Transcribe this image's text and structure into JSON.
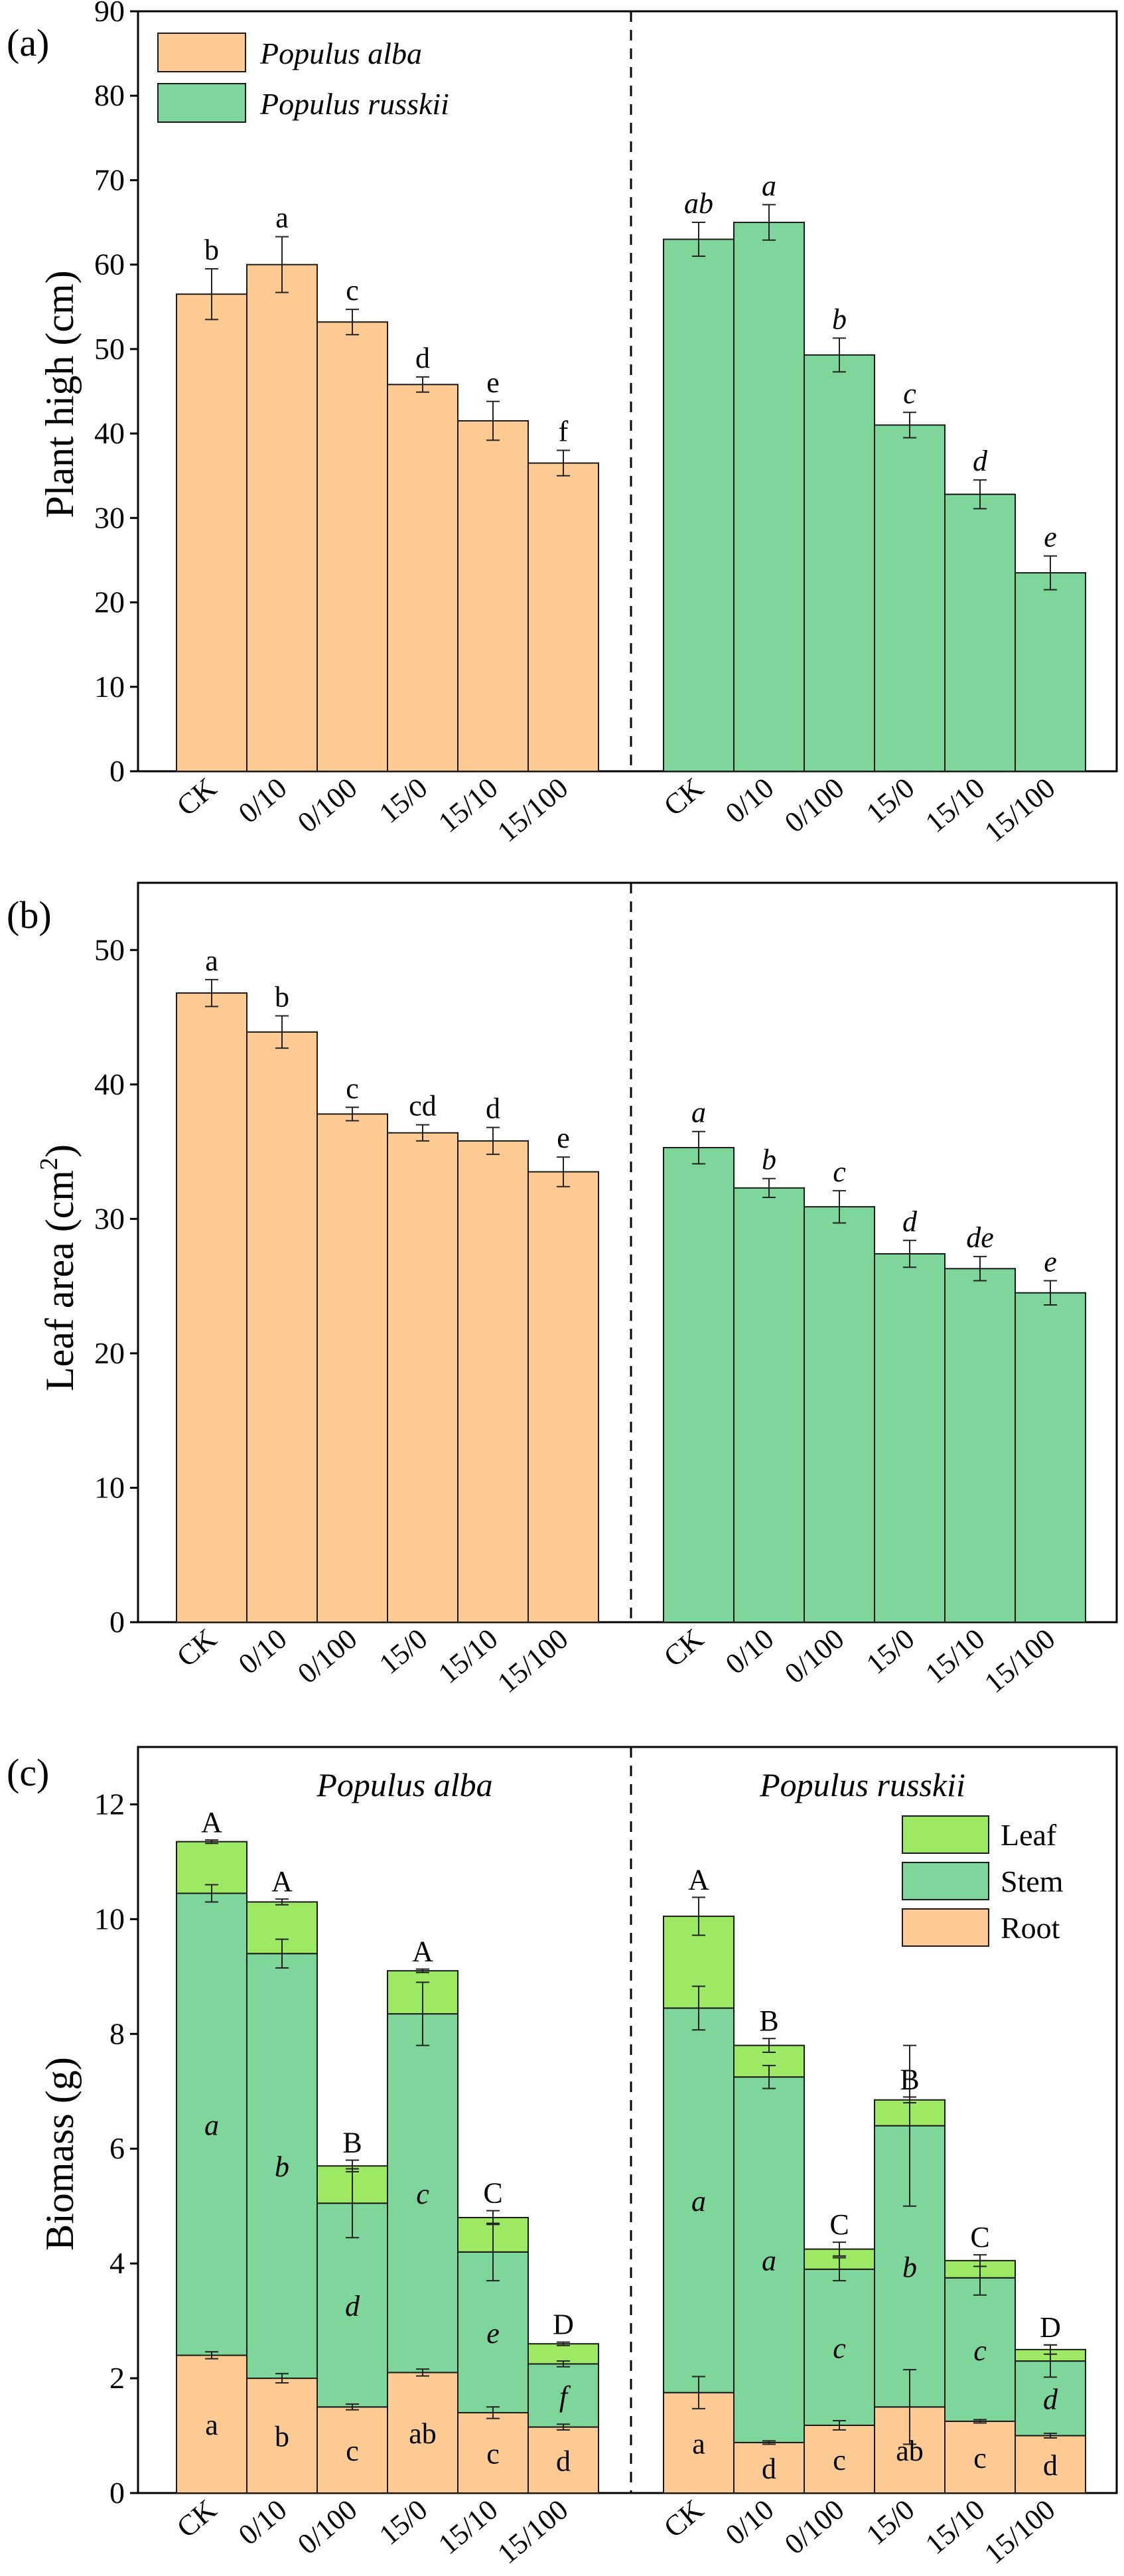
{
  "colors": {
    "alba": "#FDCA94",
    "russkii": "#7ED69A",
    "leaf": "#9EE963",
    "stem": "#7ED69A",
    "root": "#FDCA94",
    "edge": "#1a1a1a"
  },
  "legend": {
    "alba_label": "Populus alba",
    "russkii_label": "Populus russkii",
    "leaf_label": "Leaf",
    "stem_label": "Stem",
    "root_label": "Root"
  },
  "chart_data": [
    {
      "type": "bar",
      "panel_label": "(a)",
      "ylabel": "Plant high (cm)",
      "ylim": [
        0,
        90
      ],
      "yticks": [
        0,
        10,
        20,
        30,
        40,
        50,
        60,
        70,
        80,
        90
      ],
      "categories": [
        "CK",
        "0/10",
        "0/100",
        "15/0",
        "15/10",
        "15/100"
      ],
      "series": [
        {
          "name": "Populus alba",
          "values": [
            56.5,
            60.0,
            53.2,
            45.8,
            41.5,
            36.5
          ],
          "errors": [
            3.0,
            3.3,
            1.5,
            0.9,
            2.3,
            1.5
          ],
          "letters": [
            "b",
            "a",
            "c",
            "d",
            "e",
            "f"
          ],
          "italic": false
        },
        {
          "name": "Populus russkii",
          "values": [
            63.0,
            65.0,
            49.3,
            41.0,
            32.8,
            23.5
          ],
          "errors": [
            2.0,
            2.1,
            2.0,
            1.5,
            1.7,
            2.0
          ],
          "letters": [
            "ab",
            "a",
            "b",
            "c",
            "d",
            "e"
          ],
          "italic": true
        }
      ]
    },
    {
      "type": "bar",
      "panel_label": "(b)",
      "ylabel": "Leaf area (cm",
      "ylabel_sup": "2",
      "ylabel_end": ")",
      "ylim": [
        0,
        55
      ],
      "yticks": [
        0,
        10,
        20,
        30,
        40,
        50
      ],
      "categories": [
        "CK",
        "0/10",
        "0/100",
        "15/0",
        "15/10",
        "15/100"
      ],
      "series": [
        {
          "name": "Populus alba",
          "values": [
            46.8,
            43.9,
            37.8,
            36.4,
            35.8,
            33.5
          ],
          "errors": [
            1.0,
            1.2,
            0.5,
            0.6,
            1.0,
            1.1
          ],
          "letters": [
            "a",
            "b",
            "c",
            "cd",
            "d",
            "e"
          ],
          "italic": false
        },
        {
          "name": "Populus russkii",
          "values": [
            35.3,
            32.3,
            30.9,
            27.4,
            26.3,
            24.5
          ],
          "errors": [
            1.2,
            0.7,
            1.2,
            1.0,
            0.9,
            0.9
          ],
          "letters": [
            "a",
            "b",
            "c",
            "d",
            "de",
            "e"
          ],
          "italic": true
        }
      ]
    },
    {
      "type": "bar",
      "stacked": true,
      "panel_label": "(c)",
      "ylabel": "Biomass (g)",
      "ylim": [
        0,
        13
      ],
      "yticks": [
        0,
        2,
        4,
        6,
        8,
        10,
        12
      ],
      "categories": [
        "CK",
        "0/10",
        "0/100",
        "15/0",
        "15/10",
        "15/100"
      ],
      "groups": [
        {
          "name": "Populus alba",
          "root": [
            2.4,
            2.0,
            1.5,
            2.1,
            1.4,
            1.15
          ],
          "root_err": [
            0.06,
            0.08,
            0.05,
            0.06,
            0.1,
            0.05
          ],
          "stem_top": [
            10.45,
            9.4,
            5.05,
            8.35,
            4.2,
            2.25
          ],
          "stem_err": [
            0.15,
            0.25,
            0.6,
            0.55,
            0.5,
            0.05
          ],
          "total": [
            11.35,
            10.3,
            5.7,
            9.1,
            4.8,
            2.6
          ],
          "total_err": [
            0.03,
            0.05,
            0.1,
            0.03,
            0.12,
            0.03
          ],
          "root_letters": [
            "a",
            "b",
            "c",
            "ab",
            "c",
            "d"
          ],
          "stem_letters": [
            "a",
            "b",
            "d",
            "c",
            "e",
            "f"
          ],
          "total_letters": [
            "A",
            "A",
            "B",
            "A",
            "C",
            "D"
          ]
        },
        {
          "name": "Populus russkii",
          "root": [
            1.75,
            0.88,
            1.18,
            1.5,
            1.25,
            1.0
          ],
          "root_err": [
            0.28,
            0.03,
            0.08,
            0.65,
            0.03,
            0.04
          ],
          "stem_top": [
            8.45,
            7.25,
            3.9,
            6.4,
            3.75,
            2.3
          ],
          "stem_err": [
            0.38,
            0.2,
            0.2,
            1.4,
            0.3,
            0.28
          ],
          "total": [
            10.05,
            7.8,
            4.25,
            6.85,
            4.05,
            2.5
          ],
          "total_err": [
            0.33,
            0.12,
            0.12,
            0.05,
            0.1,
            0.08
          ],
          "root_letters": [
            "a",
            "d",
            "c",
            "ab",
            "c",
            "d"
          ],
          "stem_letters": [
            "a",
            "a",
            "c",
            "b",
            "c",
            "d"
          ],
          "total_letters": [
            "A",
            "B",
            "C",
            "B",
            "C",
            "D"
          ]
        }
      ]
    }
  ]
}
